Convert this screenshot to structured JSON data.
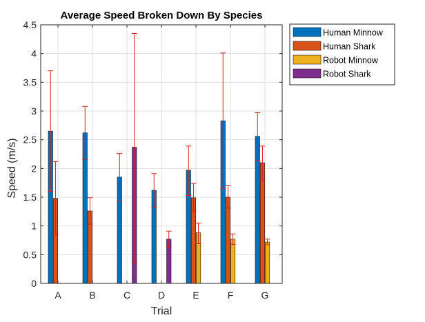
{
  "chart_data": {
    "type": "bar",
    "title": "Average Speed Broken Down By Species",
    "xlabel": "Trial",
    "ylabel": "Speed (m/s)",
    "categories": [
      "A",
      "B",
      "C",
      "D",
      "E",
      "F",
      "G"
    ],
    "ylim": [
      0,
      4.5
    ],
    "yticks": [
      "0",
      "0.5",
      "1",
      "1.5",
      "2",
      "2.5",
      "3",
      "3.5",
      "4",
      "4.5"
    ],
    "grid": true,
    "legend_position": "outside-top-right",
    "error_bar_color": "#d62020",
    "series": [
      {
        "name": "Human Minnow",
        "color": "#0072BD",
        "values": [
          2.65,
          2.62,
          1.85,
          1.62,
          1.97,
          2.83,
          2.56
        ],
        "error_low": [
          1.6,
          2.16,
          1.43,
          1.32,
          1.53,
          1.65,
          2.14
        ],
        "error_high": [
          3.7,
          3.08,
          2.26,
          1.91,
          2.39,
          4.01,
          2.97
        ]
      },
      {
        "name": "Human Shark",
        "color": "#D95319",
        "values": [
          1.48,
          1.26,
          null,
          null,
          1.49,
          1.5,
          2.1
        ],
        "error_low": [
          0.85,
          1.03,
          null,
          null,
          1.25,
          1.31,
          1.79
        ],
        "error_high": [
          2.12,
          1.49,
          null,
          null,
          1.74,
          1.7,
          2.39
        ]
      },
      {
        "name": "Robot Minnow",
        "color": "#EDB120",
        "values": [
          null,
          null,
          null,
          null,
          0.88,
          0.77,
          0.72
        ],
        "error_low": [
          null,
          null,
          null,
          null,
          0.69,
          0.68,
          0.67
        ],
        "error_high": [
          null,
          null,
          null,
          null,
          1.05,
          0.86,
          0.77
        ]
      },
      {
        "name": "Robot Shark",
        "color": "#7E2F8E",
        "values": [
          null,
          null,
          2.37,
          0.77,
          null,
          null,
          null
        ],
        "error_low": [
          null,
          null,
          0.37,
          0.62,
          null,
          null,
          null
        ],
        "error_high": [
          null,
          null,
          4.35,
          0.91,
          null,
          null,
          null
        ]
      }
    ]
  }
}
